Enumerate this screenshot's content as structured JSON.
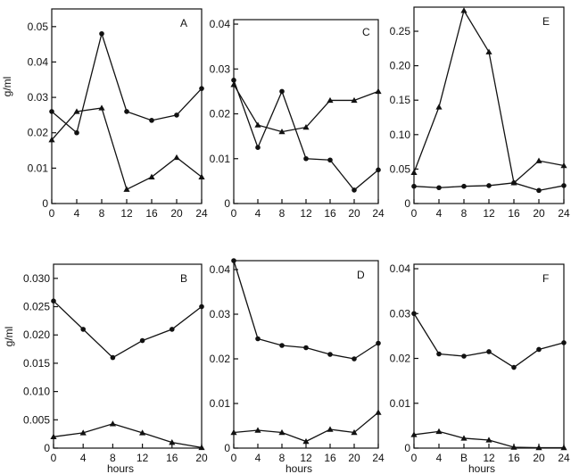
{
  "chart_data": [
    {
      "type": "line",
      "panel": "A",
      "ylabel": "g/ml",
      "xlabel": "",
      "xlim": [
        0,
        24
      ],
      "ylim": [
        0,
        0.055
      ],
      "xticks": [
        "0",
        "4",
        "8",
        "12",
        "16",
        "20",
        "24"
      ],
      "xtick_values": [
        0,
        4,
        8,
        12,
        16,
        20,
        24
      ],
      "yticks": [
        "0",
        "0.01",
        "0.02",
        "0.03",
        "0.04",
        "0.05"
      ],
      "ytick_values": [
        0,
        0.01,
        0.02,
        0.03,
        0.04,
        0.05
      ],
      "series": [
        {
          "marker": "circle",
          "x": [
            0,
            4,
            8,
            12,
            16,
            20,
            24
          ],
          "y": [
            0.026,
            0.02,
            0.048,
            0.026,
            0.0235,
            0.025,
            0.0325
          ]
        },
        {
          "marker": "triangle",
          "x": [
            0,
            4,
            8,
            12,
            16,
            20,
            24
          ],
          "y": [
            0.018,
            0.026,
            0.027,
            0.004,
            0.0075,
            0.013,
            0.0075
          ]
        }
      ]
    },
    {
      "type": "line",
      "panel": "C",
      "ylabel": "",
      "xlabel": "",
      "xlim": [
        0,
        24
      ],
      "ylim": [
        0,
        0.041
      ],
      "xticks": [
        "0",
        "4",
        "8",
        "12",
        "16",
        "20",
        "24"
      ],
      "xtick_values": [
        0,
        4,
        8,
        12,
        16,
        20,
        24
      ],
      "yticks": [
        "0",
        "0.01",
        "0.02",
        "0.03",
        "0.04"
      ],
      "ytick_values": [
        0,
        0.01,
        0.02,
        0.03,
        0.04
      ],
      "series": [
        {
          "marker": "circle",
          "x": [
            0,
            4,
            8,
            12,
            16,
            20,
            24
          ],
          "y": [
            0.0275,
            0.0125,
            0.025,
            0.01,
            0.0097,
            0.003,
            0.0075
          ]
        },
        {
          "marker": "triangle",
          "x": [
            0,
            4,
            8,
            12,
            16,
            20,
            24
          ],
          "y": [
            0.0265,
            0.0175,
            0.016,
            0.017,
            0.023,
            0.023,
            0.025
          ]
        }
      ]
    },
    {
      "type": "line",
      "panel": "E",
      "ylabel": "",
      "xlabel": "",
      "xlim": [
        0,
        24
      ],
      "ylim": [
        0,
        0.285
      ],
      "xticks": [
        "0",
        "4",
        "8",
        "12",
        "16",
        "20",
        "24"
      ],
      "xtick_values": [
        0,
        4,
        8,
        12,
        16,
        20,
        24
      ],
      "yticks": [
        "0",
        "0.05",
        "0.10",
        "0.15",
        "0.20",
        "0.25"
      ],
      "ytick_values": [
        0,
        0.05,
        0.1,
        0.15,
        0.2,
        0.25
      ],
      "series": [
        {
          "marker": "circle",
          "x": [
            0,
            4,
            8,
            12,
            16,
            20,
            24
          ],
          "y": [
            0.025,
            0.023,
            0.025,
            0.026,
            0.03,
            0.019,
            0.026
          ]
        },
        {
          "marker": "triangle",
          "x": [
            0,
            4,
            8,
            12,
            16,
            20,
            24
          ],
          "y": [
            0.045,
            0.14,
            0.28,
            0.22,
            0.03,
            0.062,
            0.055
          ]
        }
      ]
    },
    {
      "type": "line",
      "panel": "B",
      "ylabel": "g/ml",
      "xlabel": "hours",
      "xlim": [
        0,
        20
      ],
      "ylim": [
        0,
        0.0325
      ],
      "xticks": [
        "0",
        "4",
        "8",
        "12",
        "16",
        "20"
      ],
      "xtick_values": [
        0,
        4,
        8,
        12,
        16,
        20
      ],
      "yticks": [
        "0",
        "0.005",
        "0.010",
        "0.015",
        "0.020",
        "0.025",
        "0.030"
      ],
      "ytick_values": [
        0,
        0.005,
        0.01,
        0.015,
        0.02,
        0.025,
        0.03
      ],
      "series": [
        {
          "marker": "circle",
          "x": [
            0,
            4,
            8,
            12,
            16,
            20
          ],
          "y": [
            0.026,
            0.021,
            0.016,
            0.019,
            0.021,
            0.025
          ]
        },
        {
          "marker": "triangle",
          "x": [
            0,
            4,
            8,
            12,
            16,
            20
          ],
          "y": [
            0.002,
            0.0027,
            0.0043,
            0.0027,
            0.001,
            0.0001
          ]
        }
      ]
    },
    {
      "type": "line",
      "panel": "D",
      "ylabel": "",
      "xlabel": "hours",
      "xlim": [
        0,
        24
      ],
      "ylim": [
        0,
        0.042
      ],
      "xticks": [
        "0",
        "4",
        "8",
        "12",
        "16",
        "20",
        "24"
      ],
      "xtick_values": [
        0,
        4,
        8,
        12,
        16,
        20,
        24
      ],
      "yticks": [
        "0",
        "0.01",
        "0.02",
        "0.03",
        "0.04"
      ],
      "ytick_values": [
        0,
        0.01,
        0.02,
        0.03,
        0.04
      ],
      "series": [
        {
          "marker": "circle",
          "x": [
            0,
            4,
            8,
            12,
            16,
            20,
            24
          ],
          "y": [
            0.042,
            0.0245,
            0.023,
            0.0225,
            0.021,
            0.02,
            0.0235
          ]
        },
        {
          "marker": "triangle",
          "x": [
            0,
            4,
            8,
            12,
            16,
            20,
            24
          ],
          "y": [
            0.0035,
            0.004,
            0.0035,
            0.0015,
            0.0042,
            0.0035,
            0.008
          ]
        }
      ]
    },
    {
      "type": "line",
      "panel": "F",
      "ylabel": "",
      "xlabel": "hours",
      "xlim": [
        0,
        24
      ],
      "ylim": [
        0,
        0.041
      ],
      "xticks": [
        "0",
        "4",
        "8",
        "12",
        "16",
        "20",
        "24"
      ],
      "xtick_values": [
        0,
        4,
        8,
        12,
        16,
        20,
        24
      ],
      "yticks": [
        "0",
        "0.01",
        "0.02",
        "0.03",
        "0.04"
      ],
      "ytick_values": [
        0,
        0.01,
        0.02,
        0.03,
        0.04
      ],
      "series": [
        {
          "marker": "circle",
          "x": [
            0,
            4,
            8,
            12,
            16,
            20,
            24
          ],
          "y": [
            0.03,
            0.021,
            0.0205,
            0.0215,
            0.018,
            0.022,
            0.0235
          ]
        },
        {
          "marker": "triangle",
          "x": [
            0,
            4,
            8,
            12,
            16,
            20,
            24
          ],
          "y": [
            0.003,
            0.0037,
            0.0022,
            0.0018,
            0.0002,
            0.0001,
            0.0001
          ]
        }
      ]
    }
  ],
  "tick_text_overrides": {
    "F": {
      "2": "B"
    }
  }
}
